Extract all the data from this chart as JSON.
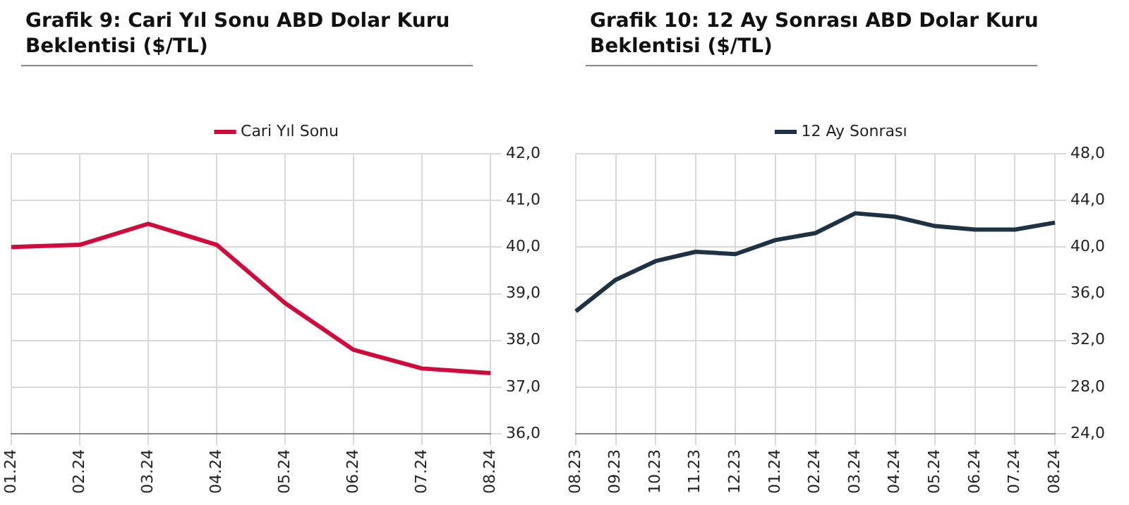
{
  "chart_data": [
    {
      "type": "line",
      "title": "Grafik 9: Cari Yıl Sonu ABD Dolar Kuru Beklentisi ($/TL)",
      "categories": [
        "01.24",
        "02.24",
        "03.24",
        "04.24",
        "05.24",
        "06.24",
        "07.24",
        "08.24"
      ],
      "series": [
        {
          "name": "Cari Yıl Sonu",
          "color": "#d20a3c",
          "values": [
            40.0,
            40.05,
            40.5,
            40.05,
            38.8,
            37.8,
            37.4,
            37.3
          ]
        }
      ],
      "ylim": [
        36,
        42
      ],
      "yticks": [
        {
          "value": 36,
          "label": "36,0"
        },
        {
          "value": 37,
          "label": "37,0"
        },
        {
          "value": 38,
          "label": "38,0"
        },
        {
          "value": 39,
          "label": "39,0"
        },
        {
          "value": 40,
          "label": "40,0"
        },
        {
          "value": 41,
          "label": "41,0"
        },
        {
          "value": 42,
          "label": "42,0"
        }
      ],
      "grid": true,
      "legend": "top",
      "marker": "none",
      "line_style": "solid"
    },
    {
      "type": "line",
      "title": "Grafik 10: 12 Ay Sonrası ABD Dolar Kuru Beklentisi ($/TL)",
      "categories": [
        "08.23",
        "09.23",
        "10.23",
        "11.23",
        "12.23",
        "01.24",
        "02.24",
        "03.24",
        "04.24",
        "05.24",
        "06.24",
        "07.24",
        "08.24"
      ],
      "series": [
        {
          "name": "12 Ay Sonrası",
          "color": "#1e3246",
          "values": [
            34.5,
            37.2,
            38.8,
            39.6,
            39.4,
            40.6,
            41.2,
            42.9,
            42.6,
            41.8,
            41.5,
            41.5,
            42.1
          ]
        }
      ],
      "ylim": [
        24,
        48
      ],
      "yticks": [
        {
          "value": 24,
          "label": "24,0"
        },
        {
          "value": 28,
          "label": "28,0"
        },
        {
          "value": 32,
          "label": "32,0"
        },
        {
          "value": 36,
          "label": "36,0"
        },
        {
          "value": 40,
          "label": "40,0"
        },
        {
          "value": 44,
          "label": "44,0"
        },
        {
          "value": 48,
          "label": "48,0"
        }
      ],
      "grid": true,
      "legend": "top",
      "marker": "none",
      "line_style": "solid"
    }
  ]
}
